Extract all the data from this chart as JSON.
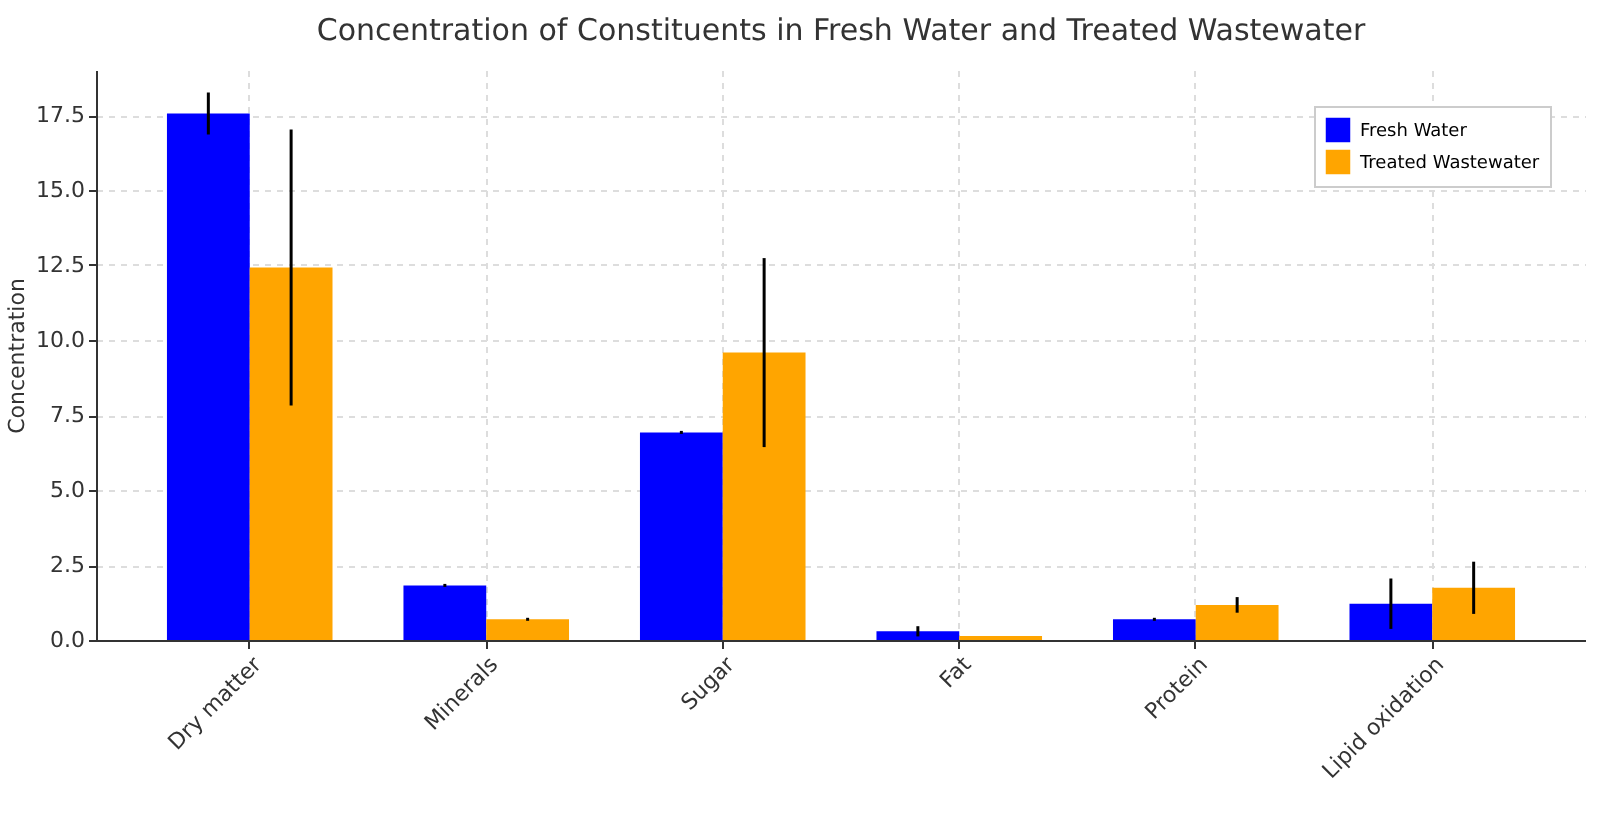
{
  "chart_data": {
    "type": "bar",
    "title": "Concentration of Constituents in Fresh Water and Treated Wastewater",
    "ylabel": "Concentration",
    "categories": [
      "Dry matter",
      "Minerals",
      "Sugar",
      "Fat",
      "Protein",
      "Lipid oxidation"
    ],
    "series": [
      {
        "name": "Fresh Water",
        "color": "#0000ff",
        "values": [
          17.55,
          1.82,
          6.92,
          0.29,
          0.69,
          1.21
        ],
        "errors": [
          0.7,
          0.05,
          0.05,
          0.17,
          0.05,
          0.84
        ]
      },
      {
        "name": "Treated Wastewater",
        "color": "#ffa500",
        "values": [
          12.42,
          0.69,
          9.58,
          0.13,
          1.17,
          1.74
        ],
        "errors": [
          4.6,
          0.05,
          3.15,
          null,
          0.26,
          0.87
        ]
      }
    ],
    "ylim": [
      0,
      19
    ],
    "yticks": [
      {
        "value": 0,
        "label": "0.0"
      },
      {
        "value": 2.5,
        "label": "2.5"
      },
      {
        "value": 5,
        "label": "5.0"
      },
      {
        "value": 7.5,
        "label": "7.5"
      },
      {
        "value": 10,
        "label": "10.0"
      },
      {
        "value": 12.5,
        "label": "12.5"
      },
      {
        "value": 15,
        "label": "15.0"
      },
      {
        "value": 17.5,
        "label": "17.5"
      }
    ],
    "grid": true,
    "legend": "top right"
  }
}
